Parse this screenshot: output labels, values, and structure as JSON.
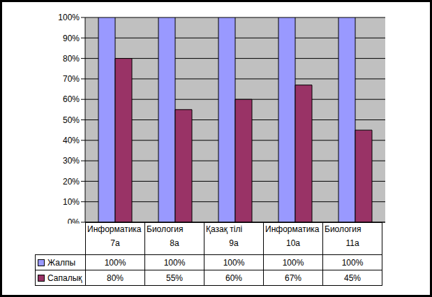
{
  "chart_data": {
    "type": "bar",
    "categories": [
      "Информатика\n7а",
      "Биология\n8а",
      "Қазақ тілі\n9а",
      "Информатика\n10а",
      "Биология\n11а"
    ],
    "series": [
      {
        "name": "Жалпы",
        "color": "#9999ff",
        "values": [
          100,
          100,
          100,
          100,
          100
        ],
        "value_labels": [
          "100%",
          "100%",
          "100%",
          "100%",
          "100%"
        ]
      },
      {
        "name": "Сапалық",
        "color": "#993366",
        "values": [
          80,
          55,
          60,
          67,
          45
        ],
        "value_labels": [
          "80%",
          "55%",
          "60%",
          "67%",
          "45%"
        ]
      }
    ],
    "ylim": [
      0,
      100
    ],
    "yticks": [
      {
        "value": 0,
        "label": "0%"
      },
      {
        "value": 10,
        "label": "10%"
      },
      {
        "value": 20,
        "label": "20%"
      },
      {
        "value": 30,
        "label": "30%"
      },
      {
        "value": 40,
        "label": "40%"
      },
      {
        "value": 50,
        "label": "50%"
      },
      {
        "value": 60,
        "label": "60%"
      },
      {
        "value": 70,
        "label": "70%"
      },
      {
        "value": 80,
        "label": "80%"
      },
      {
        "value": 90,
        "label": "90%"
      },
      {
        "value": 100,
        "label": "100%"
      }
    ],
    "grid": true
  }
}
